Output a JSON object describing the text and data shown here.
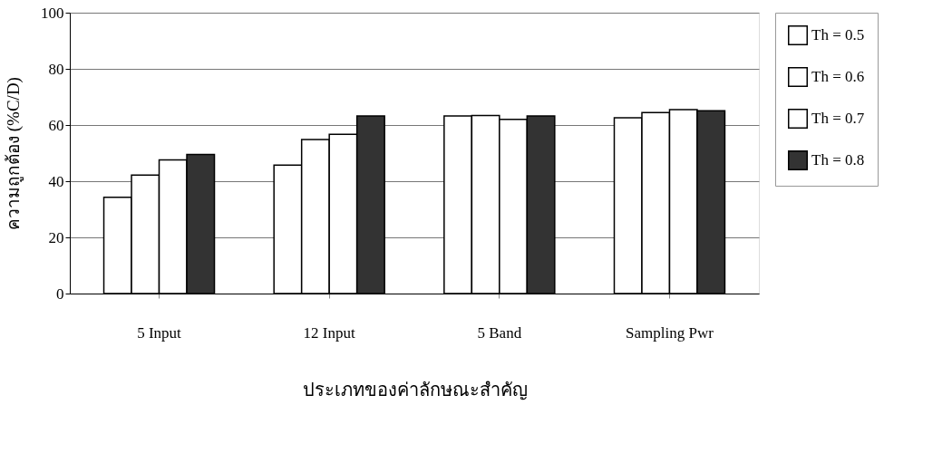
{
  "chart_data": {
    "type": "bar",
    "xlabel": "ประเภทของค่าลักษณะสำคัญ",
    "ylabel": "ความถูกต้อง (%C/D)",
    "categories": [
      "5 Input",
      "12 Input",
      "5 Band",
      "Sampling Pwr"
    ],
    "series": [
      {
        "name": "Th = 0.5",
        "color": "#ffffff",
        "values": [
          34.3,
          45.7,
          63.2,
          62.6
        ]
      },
      {
        "name": "Th = 0.6",
        "color": "#ffffff",
        "values": [
          42.2,
          54.8,
          63.4,
          64.4
        ]
      },
      {
        "name": "Th = 0.7",
        "color": "#ffffff",
        "values": [
          47.6,
          56.7,
          62.0,
          65.5
        ]
      },
      {
        "name": "Th = 0.8",
        "color": "#333333",
        "values": [
          49.5,
          63.2,
          63.2,
          65.1
        ]
      }
    ],
    "ylim": [
      0,
      100
    ],
    "yticks": [
      0,
      20,
      40,
      60,
      80,
      100
    ],
    "grid": "y",
    "legend": "right"
  }
}
